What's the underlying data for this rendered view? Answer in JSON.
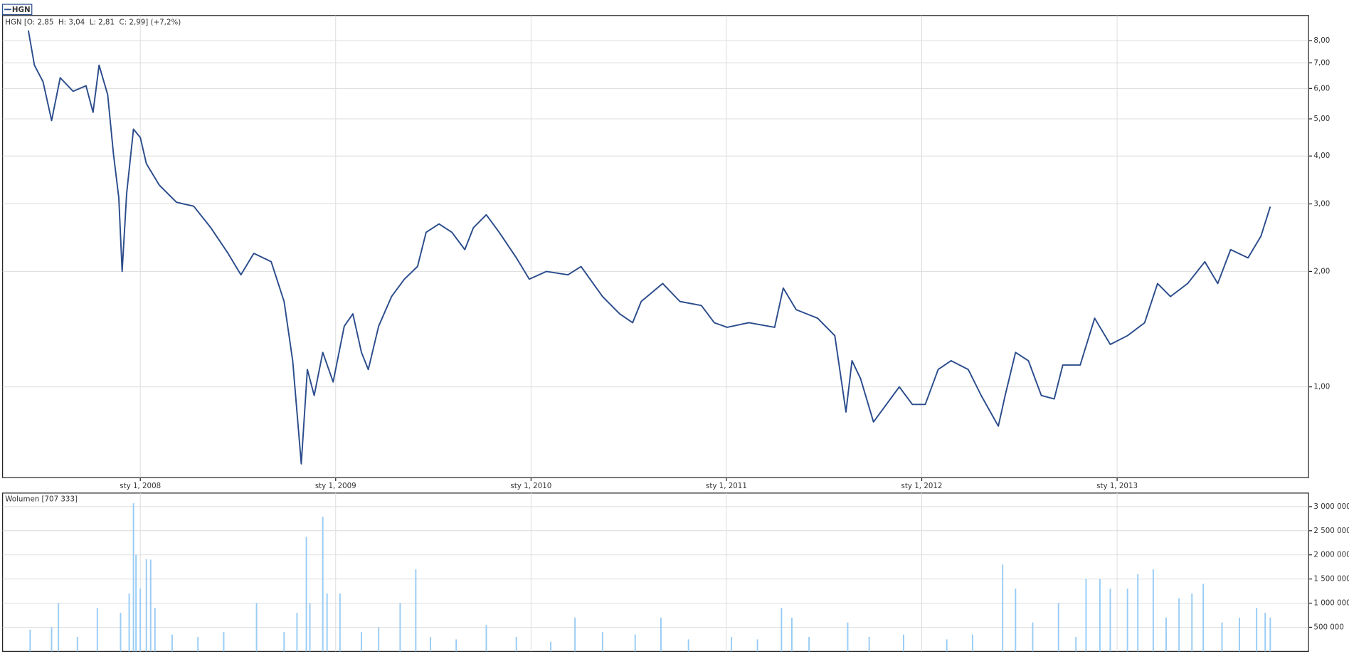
{
  "chart_data": [
    {
      "type": "line",
      "subtitle": "HGN [O: 2,85  H: 3,04  L: 2,81  C: 2,99] (+7,2%)",
      "x": [
        2007.427,
        2007.458,
        2007.502,
        2007.546,
        2007.59,
        2007.656,
        2007.722,
        2007.758,
        2007.789,
        2007.833,
        2007.863,
        2007.89,
        2007.907,
        2007.93,
        2007.965,
        2008.0,
        2008.031,
        2008.097,
        2008.185,
        2008.273,
        2008.361,
        2008.449,
        2008.515,
        2008.581,
        2008.67,
        2008.736,
        2008.78,
        2008.824,
        2008.855,
        2008.89,
        2008.934,
        2008.987,
        2009.044,
        2009.088,
        2009.132,
        2009.167,
        2009.22,
        2009.286,
        2009.352,
        2009.419,
        2009.463,
        2009.529,
        2009.595,
        2009.661,
        2009.705,
        2009.771,
        2009.837,
        2009.925,
        2009.991,
        2010.079,
        2010.189,
        2010.256,
        2010.366,
        2010.454,
        2010.52,
        2010.564,
        2010.674,
        2010.762,
        2010.872,
        2010.938,
        2011.004,
        2011.115,
        2011.247,
        2011.291,
        2011.357,
        2011.467,
        2011.555,
        2011.612,
        2011.643,
        2011.687,
        2011.753,
        2011.819,
        2011.885,
        2011.952,
        2012.018,
        2012.084,
        2012.15,
        2012.238,
        2012.304,
        2012.392,
        2012.427,
        2012.48,
        2012.546,
        2012.612,
        2012.678,
        2012.722,
        2012.811,
        2012.885,
        2012.965,
        2013.053,
        2013.141,
        2013.207,
        2013.273,
        2013.361,
        2013.449,
        2013.515,
        2013.581,
        2013.67,
        2013.736,
        2013.784
      ],
      "series": [
        {
          "name": "HGN",
          "color": "#2b4c8c",
          "values": [
            8.5,
            6.9,
            6.25,
            4.95,
            6.4,
            5.9,
            6.1,
            5.2,
            6.9,
            5.78,
            4.03,
            3.11,
            2.0,
            3.19,
            4.7,
            4.47,
            3.82,
            3.36,
            3.03,
            2.96,
            2.6,
            2.23,
            1.96,
            2.23,
            2.12,
            1.67,
            1.17,
            0.63,
            1.11,
            0.95,
            1.23,
            1.03,
            1.44,
            1.55,
            1.23,
            1.11,
            1.44,
            1.72,
            1.91,
            2.06,
            2.53,
            2.66,
            2.53,
            2.28,
            2.6,
            2.81,
            2.53,
            2.17,
            1.91,
            2.0,
            1.96,
            2.06,
            1.72,
            1.55,
            1.47,
            1.67,
            1.86,
            1.67,
            1.63,
            1.47,
            1.43,
            1.47,
            1.43,
            1.81,
            1.59,
            1.51,
            1.36,
            0.86,
            1.17,
            1.05,
            0.81,
            0.9,
            1.0,
            0.9,
            0.9,
            1.11,
            1.17,
            1.11,
            0.95,
            0.79,
            0.95,
            1.23,
            1.17,
            0.95,
            0.93,
            1.14,
            1.14,
            1.51,
            1.29,
            1.36,
            1.47,
            1.86,
            1.72,
            1.86,
            2.12,
            1.86,
            2.28,
            2.17,
            2.47,
            2.95
          ]
        }
      ],
      "xlim": [
        2007.295,
        2013.98
      ],
      "ylim": [
        0.58,
        9.3
      ],
      "log_y": true,
      "xticks": [
        {
          "value": 2008,
          "label": "sty 1, 2008"
        },
        {
          "value": 2009,
          "label": "sty 1, 2009"
        },
        {
          "value": 2010,
          "label": "sty 1, 2010"
        },
        {
          "value": 2011,
          "label": "sty 1, 2011"
        },
        {
          "value": 2012,
          "label": "sty 1, 2012"
        },
        {
          "value": 2013,
          "label": "sty 1, 2013"
        }
      ],
      "yticks": [
        {
          "value": 1,
          "label": "1,00"
        },
        {
          "value": 2,
          "label": "2,00"
        },
        {
          "value": 3,
          "label": "3,00"
        },
        {
          "value": 4,
          "label": "4,00"
        },
        {
          "value": 5,
          "label": "5,00"
        },
        {
          "value": 6,
          "label": "6,00"
        },
        {
          "value": 7,
          "label": "7,00"
        },
        {
          "value": 8,
          "label": "8,00"
        }
      ],
      "grid": true,
      "legend": "top-left"
    },
    {
      "type": "bar",
      "subtitle": "Wolumen [707 333]",
      "x": [
        2007.436,
        2007.546,
        2007.581,
        2007.678,
        2007.78,
        2007.899,
        2007.943,
        2007.965,
        2007.978,
        2008.0,
        2008.031,
        2008.053,
        2008.075,
        2008.163,
        2008.295,
        2008.427,
        2008.595,
        2008.736,
        2008.802,
        2008.85,
        2008.868,
        2008.934,
        2008.956,
        2009.022,
        2009.132,
        2009.22,
        2009.33,
        2009.41,
        2009.485,
        2009.617,
        2009.771,
        2009.925,
        2010.101,
        2010.225,
        2010.366,
        2010.533,
        2010.665,
        2010.806,
        2011.026,
        2011.159,
        2011.282,
        2011.335,
        2011.423,
        2011.621,
        2011.731,
        2011.907,
        2012.128,
        2012.26,
        2012.414,
        2012.48,
        2012.568,
        2012.7,
        2012.789,
        2012.841,
        2012.912,
        2012.965,
        2013.053,
        2013.106,
        2013.185,
        2013.251,
        2013.317,
        2013.383,
        2013.441,
        2013.537,
        2013.626,
        2013.714,
        2013.758,
        2013.784
      ],
      "values": [
        450000,
        500000,
        1000000,
        300000,
        900000,
        800000,
        1200000,
        3070000,
        2000000,
        1300000,
        1910000,
        1900000,
        900000,
        350000,
        300000,
        400000,
        1000000,
        400000,
        800000,
        2375000,
        1000000,
        2790000,
        1200000,
        1200000,
        400000,
        500000,
        1000000,
        1700000,
        300000,
        250000,
        550000,
        300000,
        200000,
        700000,
        400000,
        350000,
        700000,
        250000,
        300000,
        250000,
        900000,
        700000,
        300000,
        600000,
        300000,
        350000,
        250000,
        350000,
        1800000,
        1300000,
        600000,
        1000000,
        300000,
        1500000,
        1500000,
        1300000,
        1300000,
        1600000,
        1700000,
        700000,
        1100000,
        1200000,
        1400000,
        600000,
        700000,
        900000,
        800000,
        700000
      ],
      "color": "#99ccf5",
      "xlim": [
        2007.295,
        2013.98
      ],
      "ylim": [
        0,
        3280000
      ],
      "yticks": [
        {
          "value": 500000,
          "label": "500 000"
        },
        {
          "value": 1000000,
          "label": "1 000 000"
        },
        {
          "value": 1500000,
          "label": "1 500 000"
        },
        {
          "value": 2000000,
          "label": "2 000 000"
        },
        {
          "value": 2500000,
          "label": "2 500 000"
        },
        {
          "value": 3000000,
          "label": "3 000 000"
        }
      ],
      "grid": true
    }
  ]
}
